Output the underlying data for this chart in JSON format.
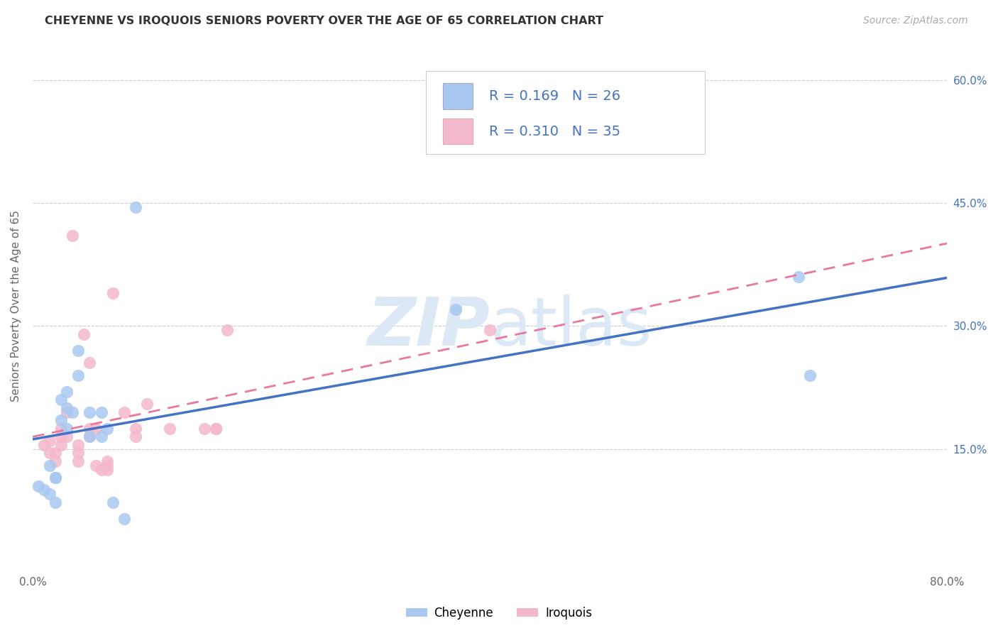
{
  "title": "CHEYENNE VS IROQUOIS SENIORS POVERTY OVER THE AGE OF 65 CORRELATION CHART",
  "source": "Source: ZipAtlas.com",
  "ylabel": "Seniors Poverty Over the Age of 65",
  "legend_label1": "Cheyenne",
  "legend_label2": "Iroquois",
  "r1": 0.169,
  "n1": 26,
  "r2": 0.31,
  "n2": 35,
  "xlim": [
    0,
    0.8
  ],
  "ylim": [
    0,
    0.65
  ],
  "xticks": [
    0.0,
    0.1,
    0.2,
    0.3,
    0.4,
    0.5,
    0.6,
    0.7,
    0.8
  ],
  "xtick_labels": [
    "0.0%",
    "",
    "",
    "",
    "",
    "",
    "",
    "",
    "80.0%"
  ],
  "yticks": [
    0.0,
    0.15,
    0.3,
    0.45,
    0.6
  ],
  "ytick_right_labels": [
    "",
    "15.0%",
    "30.0%",
    "45.0%",
    "60.0%"
  ],
  "color_cheyenne": "#a8c8f0",
  "color_iroquois": "#f4b8cc",
  "trendline_cheyenne": "#4472c4",
  "trendline_iroquois": "#e878a0",
  "background_color": "#ffffff",
  "grid_color": "#cccccc",
  "watermark_color": "#dce8f5",
  "legend_text_color": "#4472c4",
  "title_color": "#333333",
  "source_color": "#aaaaaa",
  "right_axis_color": "#4472c4",
  "cheyenne_x": [
    0.005,
    0.01,
    0.015,
    0.015,
    0.02,
    0.02,
    0.02,
    0.025,
    0.025,
    0.03,
    0.03,
    0.03,
    0.035,
    0.04,
    0.04,
    0.05,
    0.05,
    0.06,
    0.06,
    0.065,
    0.07,
    0.08,
    0.09,
    0.37,
    0.67,
    0.68
  ],
  "cheyenne_y": [
    0.105,
    0.1,
    0.13,
    0.095,
    0.085,
    0.115,
    0.115,
    0.21,
    0.185,
    0.2,
    0.175,
    0.22,
    0.195,
    0.24,
    0.27,
    0.195,
    0.165,
    0.195,
    0.165,
    0.175,
    0.085,
    0.065,
    0.445,
    0.32,
    0.36,
    0.24
  ],
  "iroquois_x": [
    0.01,
    0.015,
    0.015,
    0.02,
    0.02,
    0.025,
    0.025,
    0.025,
    0.03,
    0.03,
    0.035,
    0.04,
    0.04,
    0.04,
    0.045,
    0.05,
    0.05,
    0.05,
    0.055,
    0.055,
    0.06,
    0.065,
    0.065,
    0.065,
    0.07,
    0.08,
    0.09,
    0.09,
    0.1,
    0.12,
    0.15,
    0.16,
    0.16,
    0.17,
    0.4
  ],
  "iroquois_y": [
    0.155,
    0.16,
    0.145,
    0.145,
    0.135,
    0.175,
    0.165,
    0.155,
    0.195,
    0.165,
    0.41,
    0.155,
    0.145,
    0.135,
    0.29,
    0.255,
    0.175,
    0.165,
    0.175,
    0.13,
    0.125,
    0.135,
    0.13,
    0.125,
    0.34,
    0.195,
    0.175,
    0.165,
    0.205,
    0.175,
    0.175,
    0.175,
    0.175,
    0.295,
    0.295
  ]
}
